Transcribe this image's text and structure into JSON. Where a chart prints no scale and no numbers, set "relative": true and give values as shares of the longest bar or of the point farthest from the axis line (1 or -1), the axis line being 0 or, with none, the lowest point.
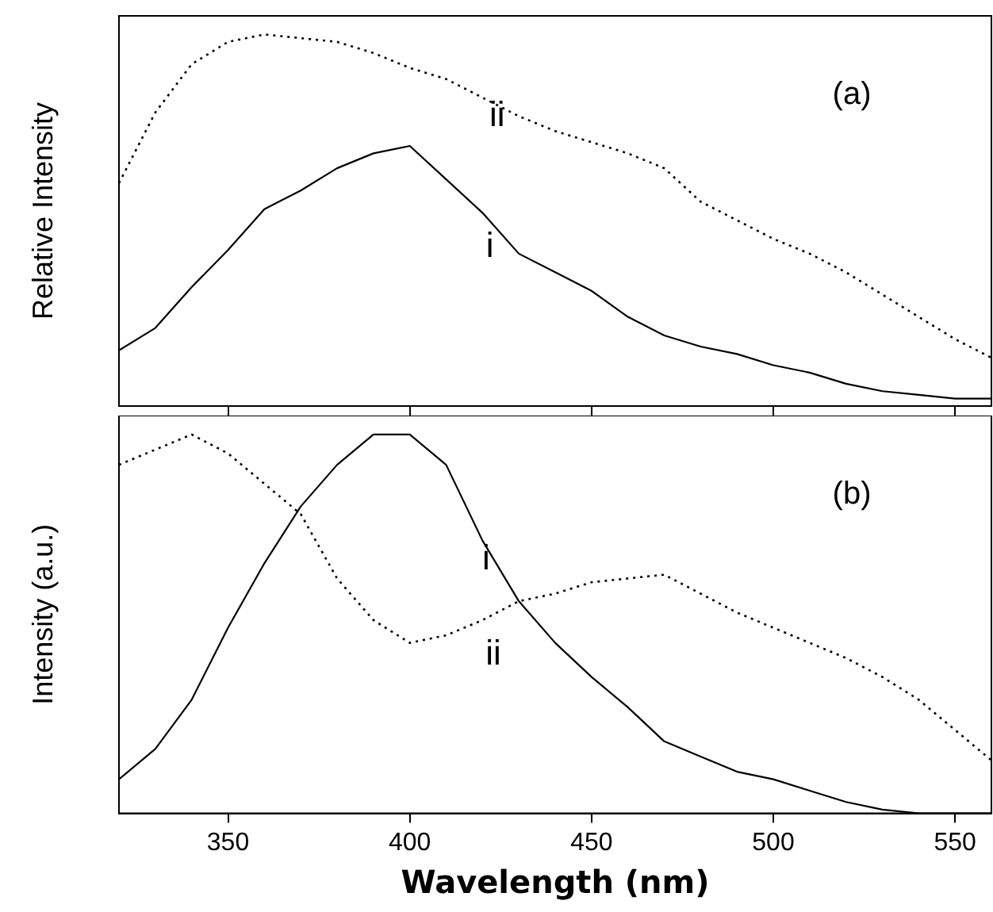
{
  "chart_data": [
    {
      "type": "line",
      "title": "(a)",
      "ylabel": "Relative Intensity",
      "relative": true,
      "x": [
        320,
        330,
        340,
        350,
        360,
        370,
        380,
        390,
        400,
        410,
        420,
        430,
        440,
        450,
        460,
        470,
        480,
        490,
        500,
        510,
        520,
        530,
        540,
        550,
        560
      ],
      "xlim": [
        320,
        560
      ],
      "xticks": [
        350,
        400,
        450,
        500,
        550
      ],
      "tick_labels": false,
      "grid": false,
      "legend": false,
      "series": [
        {
          "color": "#000000",
          "line_style": "solid",
          "values": [
            0.15,
            0.21,
            0.32,
            0.42,
            0.53,
            0.58,
            0.64,
            0.68,
            0.7,
            0.61,
            0.52,
            0.41,
            0.36,
            0.31,
            0.24,
            0.19,
            0.16,
            0.14,
            0.11,
            0.09,
            0.06,
            0.04,
            0.03,
            0.02,
            0.02
          ]
        },
        {
          "color": "#000000",
          "line_style": "dotted",
          "values": [
            0.6,
            0.79,
            0.92,
            0.98,
            1,
            0.99,
            0.98,
            0.95,
            0.91,
            0.88,
            0.83,
            0.78,
            0.74,
            0.71,
            0.68,
            0.64,
            0.55,
            0.5,
            0.45,
            0.41,
            0.36,
            0.3,
            0.24,
            0.18,
            0.13
          ]
        }
      ],
      "annotations": [
        {
          "text": "i",
          "x": 422,
          "y": 0.52
        },
        {
          "text": "ii",
          "x": 424,
          "y": 0.83
        }
      ]
    },
    {
      "type": "line",
      "title": "(b)",
      "xlabel": "Wavelength (nm)",
      "ylabel": "Intensity (a.u.)",
      "relative": true,
      "x": [
        320,
        330,
        340,
        350,
        360,
        370,
        380,
        390,
        400,
        410,
        420,
        430,
        440,
        450,
        460,
        470,
        480,
        490,
        500,
        510,
        520,
        530,
        540,
        550,
        560
      ],
      "xlim": [
        320,
        560
      ],
      "xticks": [
        350,
        400,
        450,
        500,
        550
      ],
      "tick_labels": "x",
      "grid": false,
      "legend": false,
      "series": [
        {
          "color": "#000000",
          "line_style": "solid",
          "values": [
            0.09,
            0.17,
            0.3,
            0.49,
            0.66,
            0.81,
            0.92,
            1,
            1,
            0.92,
            0.72,
            0.56,
            0.45,
            0.36,
            0.28,
            0.19,
            0.15,
            0.11,
            0.09,
            0.06,
            0.03,
            0.01,
            0,
            0,
            0
          ]
        },
        {
          "color": "#000000",
          "line_style": "dotted",
          "values": [
            0.92,
            0.96,
            1,
            0.95,
            0.87,
            0.79,
            0.62,
            0.51,
            0.45,
            0.47,
            0.51,
            0.56,
            0.58,
            0.61,
            0.62,
            0.63,
            0.58,
            0.53,
            0.49,
            0.45,
            0.41,
            0.36,
            0.3,
            0.22,
            0.14
          ]
        }
      ],
      "annotations": [
        {
          "text": "i",
          "x": 421,
          "y": 0.72
        },
        {
          "text": "ii",
          "x": 423,
          "y": 0.51
        }
      ]
    }
  ]
}
